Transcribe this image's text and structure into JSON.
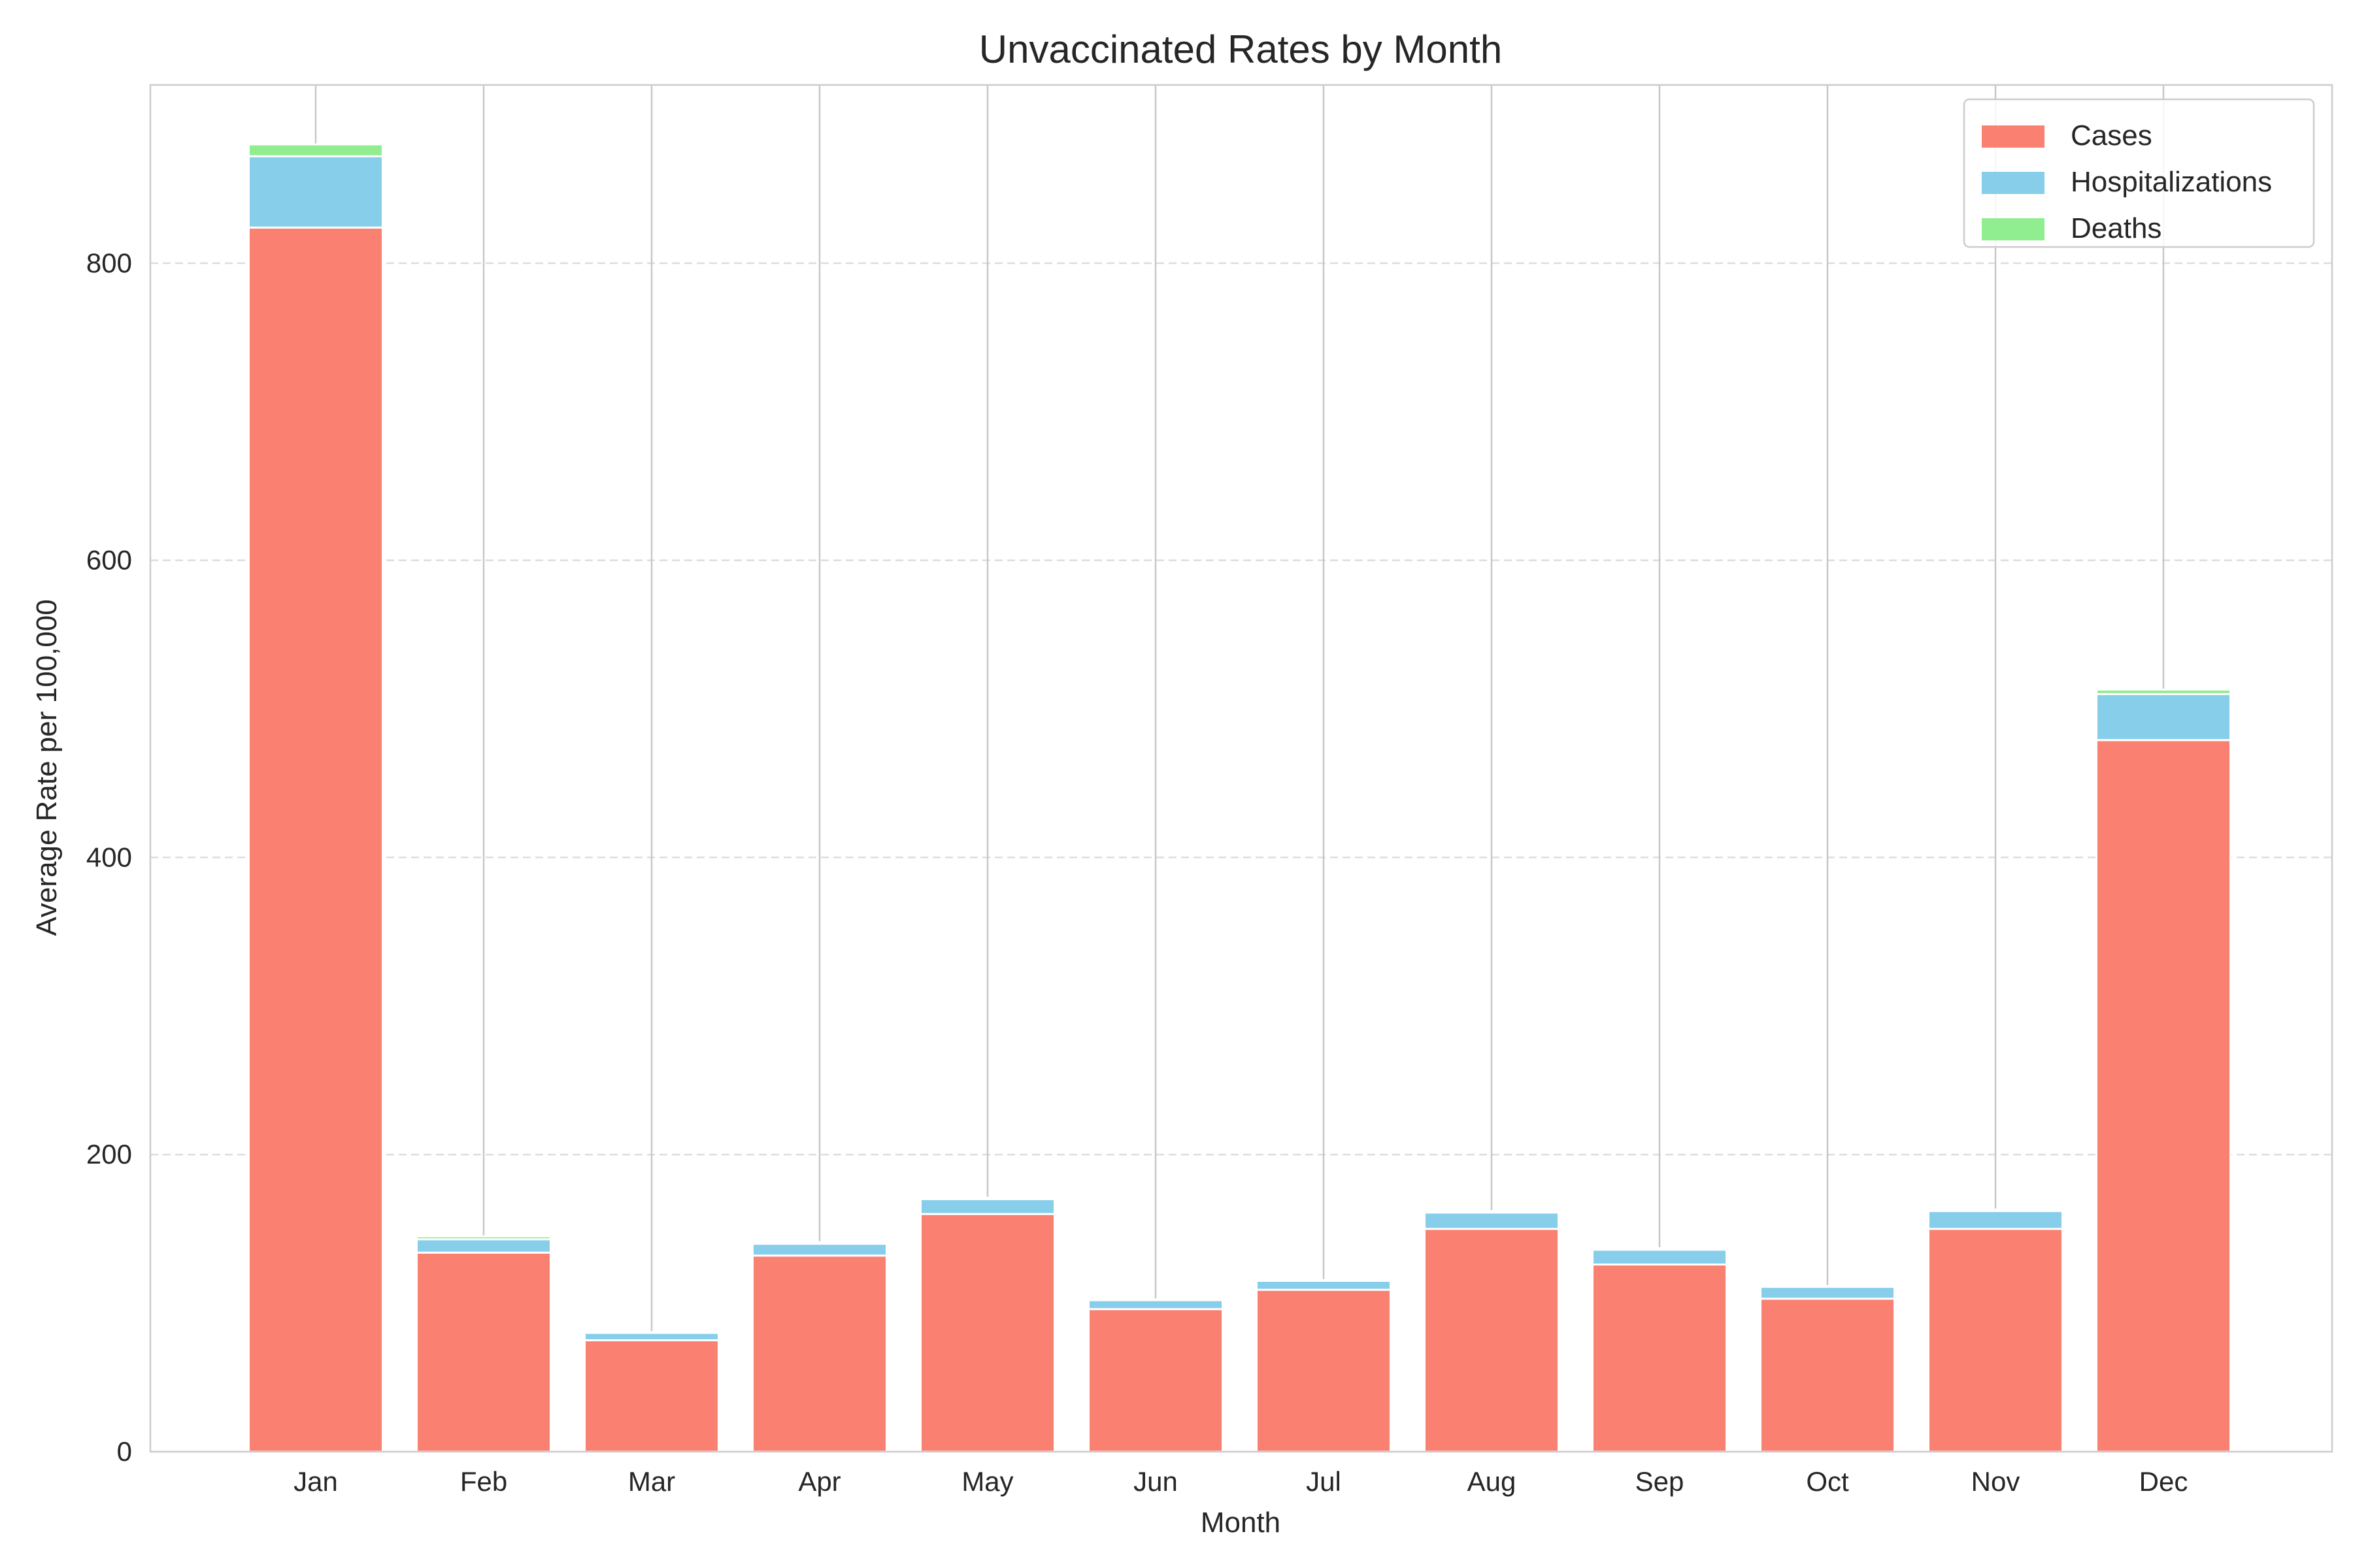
{
  "chart_data": {
    "type": "bar",
    "stacked": true,
    "title": "Unvaccinated Rates by Month",
    "xlabel": "Month",
    "ylabel": "Average Rate per 100,000",
    "categories": [
      "Jan",
      "Feb",
      "Mar",
      "Apr",
      "May",
      "Jun",
      "Jul",
      "Aug",
      "Sep",
      "Oct",
      "Nov",
      "Dec"
    ],
    "ylim": [
      0,
      920
    ],
    "yticks": [
      0,
      200,
      400,
      600,
      800
    ],
    "grid": {
      "y": true,
      "style": "dashed"
    },
    "legend_position": "top-right",
    "series": [
      {
        "name": "Cases",
        "color": "#fa8072",
        "values": [
          824,
          134,
          75,
          132,
          160,
          96,
          109,
          150,
          126,
          103,
          150,
          479
        ]
      },
      {
        "name": "Hospitalizations",
        "color": "#87ceeb",
        "values": [
          48,
          9,
          5,
          8,
          10,
          6,
          6,
          11,
          10,
          8,
          12,
          31
        ]
      },
      {
        "name": "Deaths",
        "color": "#90ee90",
        "values": [
          8,
          2,
          0.5,
          1,
          1,
          0.5,
          0.5,
          1,
          1,
          0.5,
          1,
          3
        ]
      }
    ]
  }
}
